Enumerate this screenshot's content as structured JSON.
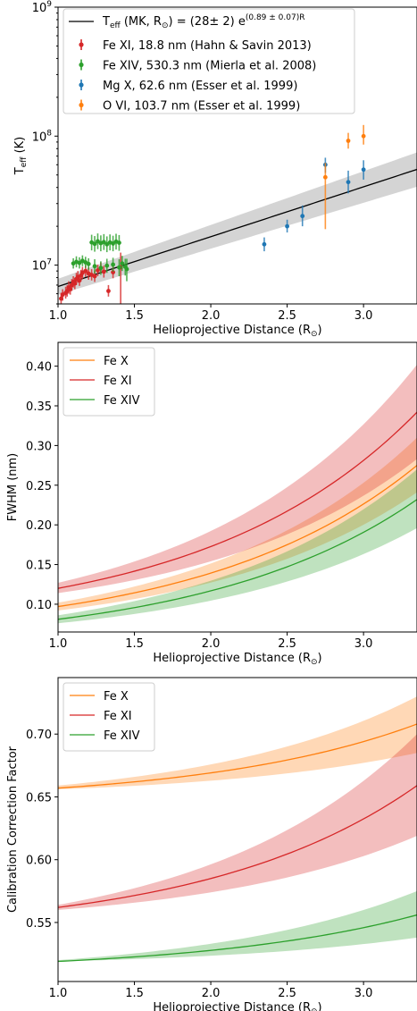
{
  "colors": {
    "orange": "#ff7f0e",
    "red": "#d62728",
    "green": "#2ca02c",
    "blue": "#1f77b4",
    "black": "#000000",
    "band_gray": "#bfbfbf"
  },
  "chart_data": [
    {
      "type": "scatter",
      "scale": "log-y",
      "xlabel": "Helioprojective Distance (R",
      "xlabel_suffix": ")",
      "ylabel": "T",
      "ylabel_sub": "eff",
      "ylabel_unit": "(K)",
      "xlim": [
        1.0,
        3.35
      ],
      "ylim": [
        5000000,
        1000000000
      ],
      "x_ticks": [
        {
          "value": 1.0,
          "label": "1.0"
        },
        {
          "value": 1.5,
          "label": "1.5"
        },
        {
          "value": 2.0,
          "label": "2.0"
        },
        {
          "value": 2.5,
          "label": "2.5"
        },
        {
          "value": 3.0,
          "label": "3.0"
        }
      ],
      "y_ticks": [
        {
          "value": 10000000,
          "base": "10",
          "exp": "7"
        },
        {
          "value": 100000000,
          "base": "10",
          "exp": "8"
        },
        {
          "value": 1000000000,
          "base": "10",
          "exp": "9"
        }
      ],
      "legend_position": "top-left",
      "legend": {
        "fit": {
          "pre": "T",
          "sub": "eff",
          "mid": " (MK, R",
          "post": ") = (28± 2) e",
          "sup": "(0.89 ± 0.07)R"
        },
        "entries": [
          {
            "label": "Fe XI, 18.8 nm (Hahn & Savin 2013)",
            "color": "#d62728"
          },
          {
            "label": "Fe XIV, 530.3 nm (Mierla et al. 2008)",
            "color": "#2ca02c"
          },
          {
            "label": "Mg X, 62.6 nm (Esser et al. 1999)",
            "color": "#1f77b4"
          },
          {
            "label": "O VI, 103.7 nm (Esser et al. 1999)",
            "color": "#ff7f0e"
          }
        ]
      },
      "fit": {
        "a": 2800000,
        "b": 0.89,
        "a_err": 200000,
        "b_err": 0.07
      },
      "series": [
        {
          "name": "Fe XI, 18.8 nm (Hahn & Savin 2013)",
          "color": "#d62728",
          "points": [
            [
              1.02,
              5500000,
              5000000,
              6100000
            ],
            [
              1.03,
              5900000,
              5300000,
              6500000
            ],
            [
              1.05,
              6100000,
              5500000,
              6800000
            ],
            [
              1.06,
              6300000,
              5700000,
              7000000
            ],
            [
              1.07,
              6700000,
              6000000,
              7500000
            ],
            [
              1.08,
              6500000,
              5900000,
              7200000
            ],
            [
              1.09,
              7000000,
              6300000,
              7800000
            ],
            [
              1.1,
              7400000,
              6700000,
              8200000
            ],
            [
              1.11,
              7200000,
              6500000,
              8000000
            ],
            [
              1.12,
              7800000,
              7000000,
              8700000
            ],
            [
              1.13,
              8100000,
              7300000,
              9000000
            ],
            [
              1.14,
              7600000,
              6900000,
              8400000
            ],
            [
              1.15,
              8300000,
              7500000,
              9200000
            ],
            [
              1.16,
              8700000,
              7800000,
              9700000
            ],
            [
              1.18,
              9000000,
              8100000,
              10000000
            ],
            [
              1.2,
              8600000,
              7700000,
              9600000
            ],
            [
              1.22,
              8400000,
              7600000,
              9300000
            ],
            [
              1.24,
              8200000,
              7400000,
              9100000
            ],
            [
              1.26,
              9100000,
              8200000,
              10100000
            ],
            [
              1.28,
              9500000,
              8600000,
              10500000
            ],
            [
              1.3,
              8900000,
              8000000,
              9900000
            ],
            [
              1.33,
              6300000,
              5700000,
              7000000
            ],
            [
              1.36,
              8800000,
              7900000,
              9800000
            ],
            [
              1.41,
              9600000,
              3900000,
              12500000
            ]
          ]
        },
        {
          "name": "Fe XIV, 530.3 nm (Mierla et al. 2008)",
          "color": "#2ca02c",
          "points": [
            [
              1.1,
              10300000,
              9400000,
              11300000
            ],
            [
              1.12,
              10600000,
              9600000,
              11700000
            ],
            [
              1.14,
              10400000,
              9400000,
              11500000
            ],
            [
              1.16,
              10800000,
              9800000,
              11900000
            ],
            [
              1.18,
              10500000,
              9500000,
              11600000
            ],
            [
              1.2,
              10200000,
              9200000,
              11300000
            ],
            [
              1.22,
              15000000,
              13000000,
              17200000
            ],
            [
              1.24,
              14600000,
              12700000,
              16800000
            ],
            [
              1.26,
              15300000,
              13300000,
              17600000
            ],
            [
              1.28,
              14800000,
              12800000,
              17000000
            ],
            [
              1.3,
              15100000,
              13100000,
              17400000
            ],
            [
              1.32,
              14500000,
              12600000,
              16700000
            ],
            [
              1.34,
              15000000,
              13000000,
              17300000
            ],
            [
              1.36,
              14700000,
              12800000,
              16900000
            ],
            [
              1.38,
              15200000,
              13200000,
              17500000
            ],
            [
              1.4,
              14900000,
              12900000,
              17100000
            ],
            [
              1.42,
              10300000,
              9000000,
              11800000
            ],
            [
              1.44,
              9700000,
              8300000,
              11200000
            ],
            [
              1.24,
              9800000,
              8600000,
              11100000
            ],
            [
              1.28,
              9500000,
              8400000,
              10700000
            ],
            [
              1.32,
              9900000,
              8700000,
              11200000
            ],
            [
              1.36,
              10100000,
              8900000,
              11400000
            ],
            [
              1.4,
              9600000,
              8200000,
              11100000
            ],
            [
              1.45,
              9300000,
              7500000,
              11200000
            ]
          ]
        },
        {
          "name": "Mg X, 62.6 nm (Esser et al. 1999)",
          "color": "#1f77b4",
          "points": [
            [
              2.35,
              14500000,
              12800000,
              16400000
            ],
            [
              2.5,
              20000000,
              17900000,
              22500000
            ],
            [
              2.6,
              24000000,
              20000000,
              29000000
            ],
            [
              2.75,
              60000000,
              52000000,
              68000000
            ],
            [
              2.9,
              44000000,
              36000000,
              54000000
            ],
            [
              3.0,
              55000000,
              46000000,
              65000000
            ]
          ]
        },
        {
          "name": "O VI, 103.7 nm (Esser et al. 1999)",
          "color": "#ff7f0e",
          "points": [
            [
              2.75,
              48000000,
              19000000,
              62000000
            ],
            [
              2.9,
              92000000,
              80000000,
              106000000
            ],
            [
              3.0,
              100000000,
              86000000,
              122000000
            ]
          ]
        }
      ]
    },
    {
      "type": "line",
      "xlabel": "Helioprojective Distance (R",
      "xlabel_suffix": ")",
      "ylabel": "FWHM (nm)",
      "xlim": [
        1.0,
        3.35
      ],
      "ylim": [
        0.065,
        0.43
      ],
      "x_ticks": [
        {
          "value": 1.0,
          "label": "1.0"
        },
        {
          "value": 1.5,
          "label": "1.5"
        },
        {
          "value": 2.0,
          "label": "2.0"
        },
        {
          "value": 2.5,
          "label": "2.5"
        },
        {
          "value": 3.0,
          "label": "3.0"
        }
      ],
      "y_ticks": [
        {
          "value": 0.1,
          "label": "0.10"
        },
        {
          "value": 0.15,
          "label": "0.15"
        },
        {
          "value": 0.2,
          "label": "0.20"
        },
        {
          "value": 0.25,
          "label": "0.25"
        },
        {
          "value": 0.3,
          "label": "0.30"
        },
        {
          "value": 0.35,
          "label": "0.35"
        },
        {
          "value": 0.4,
          "label": "0.40"
        }
      ],
      "legend_position": "top-left",
      "series": [
        {
          "name": "Fe X",
          "color": "#ff7f0e",
          "x_start": 1.0,
          "x_end": 3.35,
          "y_start": 0.097,
          "y_end": 0.275,
          "low_start": 0.092,
          "low_end": 0.241,
          "high_start": 0.102,
          "high_end": 0.31
        },
        {
          "name": "Fe XI",
          "color": "#d62728",
          "x_start": 1.0,
          "x_end": 3.35,
          "y_start": 0.12,
          "y_end": 0.342,
          "low_start": 0.114,
          "low_end": 0.283,
          "high_start": 0.127,
          "high_end": 0.402
        },
        {
          "name": "Fe XIV",
          "color": "#2ca02c",
          "x_start": 1.0,
          "x_end": 3.35,
          "y_start": 0.081,
          "y_end": 0.232,
          "low_start": 0.076,
          "low_end": 0.196,
          "high_start": 0.086,
          "high_end": 0.27
        }
      ]
    },
    {
      "type": "line",
      "xlabel": "Helioprojective Distance (R",
      "xlabel_suffix": ")",
      "ylabel": "Calibration Correction Factor",
      "xlim": [
        1.0,
        3.35
      ],
      "ylim": [
        0.503,
        0.745
      ],
      "x_ticks": [
        {
          "value": 1.0,
          "label": "1.0"
        },
        {
          "value": 1.5,
          "label": "1.5"
        },
        {
          "value": 2.0,
          "label": "2.0"
        },
        {
          "value": 2.5,
          "label": "2.5"
        },
        {
          "value": 3.0,
          "label": "3.0"
        }
      ],
      "y_ticks": [
        {
          "value": 0.55,
          "label": "0.55"
        },
        {
          "value": 0.6,
          "label": "0.60"
        },
        {
          "value": 0.65,
          "label": "0.65"
        },
        {
          "value": 0.7,
          "label": "0.70"
        }
      ],
      "legend_position": "top-left",
      "series": [
        {
          "name": "Fe X",
          "color": "#ff7f0e",
          "x_start": 1.0,
          "x_end": 3.35,
          "y_start": 0.657,
          "y_end": 0.708,
          "low_start": 0.656,
          "low_end": 0.685,
          "high_start": 0.659,
          "high_end": 0.73
        },
        {
          "name": "Fe XI",
          "color": "#d62728",
          "x_start": 1.0,
          "x_end": 3.35,
          "y_start": 0.562,
          "y_end": 0.659,
          "low_start": 0.56,
          "low_end": 0.619,
          "high_start": 0.564,
          "high_end": 0.7
        },
        {
          "name": "Fe XIV",
          "color": "#2ca02c",
          "x_start": 1.0,
          "x_end": 3.35,
          "y_start": 0.519,
          "y_end": 0.556,
          "low_start": 0.519,
          "low_end": 0.538,
          "high_start": 0.52,
          "high_end": 0.575
        }
      ]
    }
  ]
}
